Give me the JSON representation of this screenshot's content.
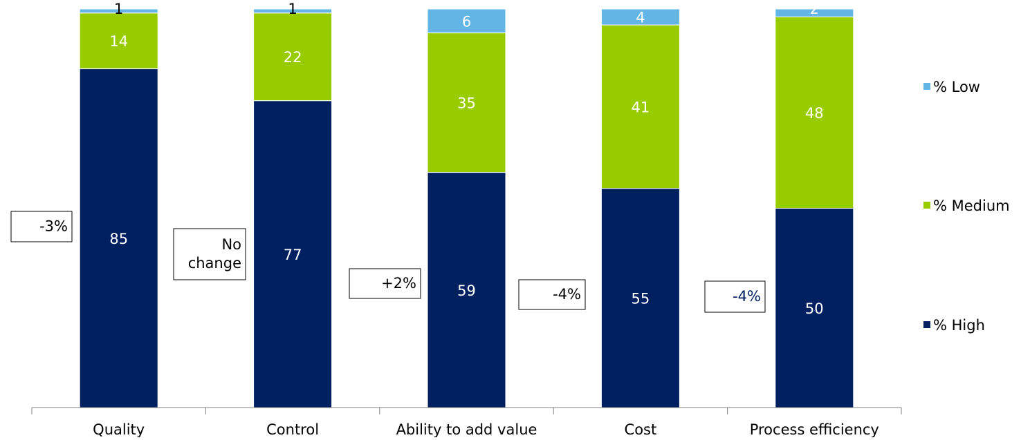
{
  "chart_data": {
    "type": "bar",
    "stacked": true,
    "categories": [
      "Quality",
      "Control",
      "Ability to add value",
      "Cost",
      "Process efficiency"
    ],
    "series": [
      {
        "name": "% High",
        "values": [
          85,
          77,
          59,
          55,
          50
        ],
        "color": "#002060"
      },
      {
        "name": "% Medium",
        "values": [
          14,
          22,
          35,
          41,
          48
        ],
        "color": "#99CC00"
      },
      {
        "name": "% Low",
        "values": [
          1,
          1,
          6,
          4,
          2
        ],
        "color": "#62B5E5"
      }
    ],
    "ylim": [
      0,
      100
    ],
    "grid": false,
    "legend": {
      "placement": "right",
      "order": [
        "% Low",
        "% Medium",
        "% High"
      ]
    },
    "annotations": [
      {
        "category": "Quality",
        "lines": [
          "-3%"
        ],
        "color": "#000000"
      },
      {
        "category": "Control",
        "lines": [
          "No",
          "change"
        ],
        "color": "#000000"
      },
      {
        "category": "Ability to add value",
        "lines": [
          "+2%"
        ],
        "color": "#000000"
      },
      {
        "category": "Cost",
        "lines": [
          "-4%"
        ],
        "color": "#000000"
      },
      {
        "category": "Process efficiency",
        "lines": [
          "-4%"
        ],
        "color": "#002060"
      }
    ]
  }
}
